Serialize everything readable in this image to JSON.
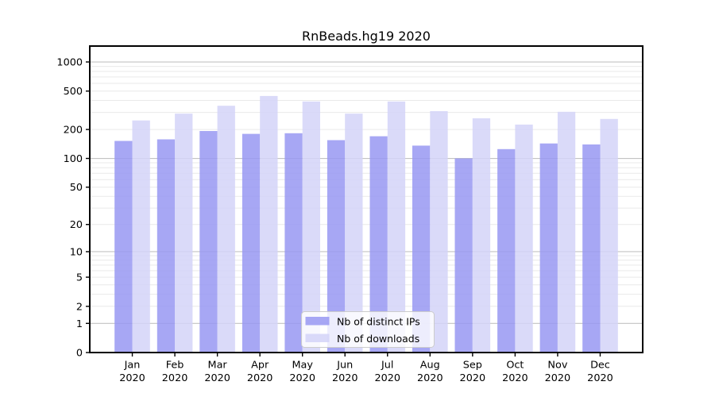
{
  "page": {
    "background": "#ffffff"
  },
  "chart_data": {
    "type": "bar",
    "title": "RnBeads.hg19 2020",
    "categories": [
      "Jan",
      "Feb",
      "Mar",
      "Apr",
      "May",
      "Jun",
      "Jul",
      "Aug",
      "Sep",
      "Oct",
      "Nov",
      "Dec"
    ],
    "category_year": "2020",
    "series": [
      {
        "name": "Nb of distinct IPs",
        "color": "#9898f2",
        "values": [
          152,
          158,
          193,
          180,
          183,
          155,
          170,
          136,
          100,
          125,
          143,
          140
        ]
      },
      {
        "name": "Nb of downloads",
        "color": "#d3d3f8",
        "values": [
          248,
          292,
          352,
          445,
          390,
          292,
          390,
          310,
          261,
          225,
          305,
          257
        ]
      }
    ],
    "yscale": "log1p",
    "yticks": [
      0,
      1,
      2,
      5,
      10,
      20,
      50,
      100,
      200,
      500,
      1000
    ],
    "ylim": [
      0,
      1460
    ],
    "xlabel": "",
    "ylabel": "",
    "grid": true,
    "grid_major_color": "#c3c3c3",
    "grid_minor_color": "#e9e9e9",
    "bar_opacity": 0.85,
    "axis_color": "#000000",
    "legend": {
      "position": "lower center",
      "bg": "#ffffff",
      "border": "#cccccc"
    }
  }
}
